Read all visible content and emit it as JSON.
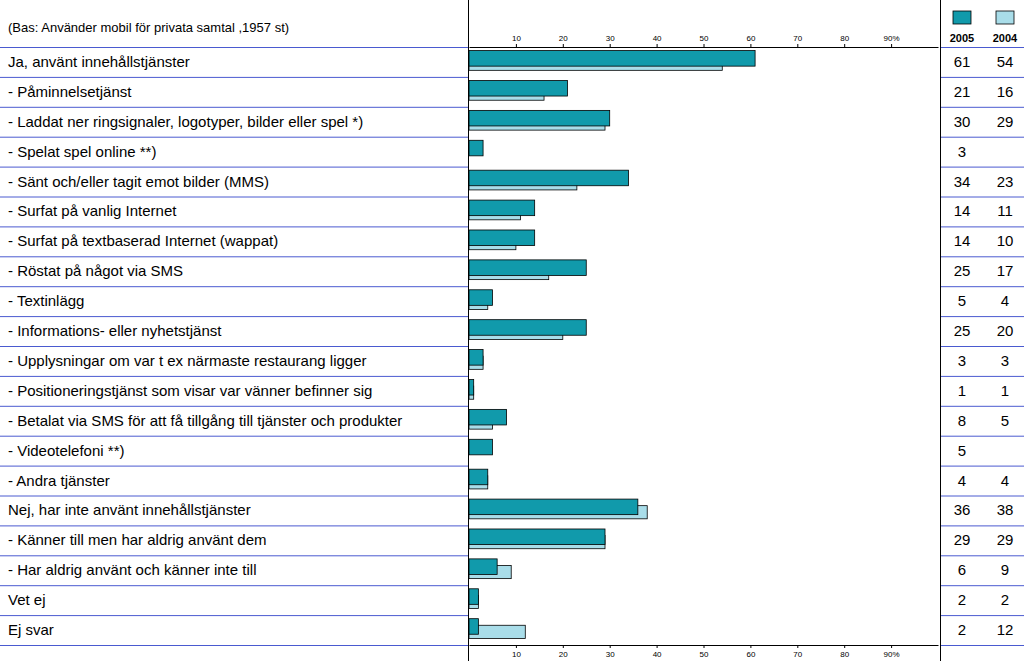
{
  "chart_data": {
    "type": "bar",
    "orientation": "horizontal",
    "subtitle": "(Bas: Använder mobil för privata samtal ,1957 st)",
    "categories": [
      "Ja, använt innehållstjänster",
      "- Påminnelsetjänst",
      "- Laddat ner ringsignaler, logotyper, bilder eller spel *)",
      "- Spelat spel online **)",
      "- Sänt och/eller tagit emot bilder (MMS)",
      "- Surfat på vanlig Internet",
      "- Surfat på textbaserad Internet (wappat)",
      "- Röstat på något via SMS",
      "- Textinlägg",
      "- Informations- eller nyhetstjänst",
      "- Upplysningar om var t ex närmaste restaurang ligger",
      "- Positioneringstjänst som visar var vänner befinner sig",
      "- Betalat via SMS för att få tillgång till tjänster och produkter",
      "- Videotelefoni **)",
      "- Andra tjänster",
      "Nej, har inte använt innehållstjänster",
      "- Känner till men har aldrig använt dem",
      "- Har aldrig använt och känner inte till",
      "Vet ej",
      "Ej svar"
    ],
    "series": [
      {
        "name": "2005",
        "color": "#119aab",
        "values": [
          61,
          21,
          30,
          3,
          34,
          14,
          14,
          25,
          5,
          25,
          3,
          1,
          8,
          5,
          4,
          36,
          29,
          6,
          2,
          2
        ]
      },
      {
        "name": "2004",
        "color": "#a9dde9",
        "values": [
          54,
          16,
          29,
          null,
          23,
          11,
          10,
          17,
          4,
          20,
          3,
          1,
          5,
          null,
          4,
          38,
          29,
          9,
          2,
          12
        ]
      }
    ],
    "xlim": [
      0,
      100
    ],
    "xticks": [
      10,
      20,
      30,
      40,
      50,
      60,
      70,
      80,
      {
        "value": 90,
        "label": "90%"
      }
    ],
    "grid": false,
    "data_labels": true,
    "legend": "top-right"
  }
}
